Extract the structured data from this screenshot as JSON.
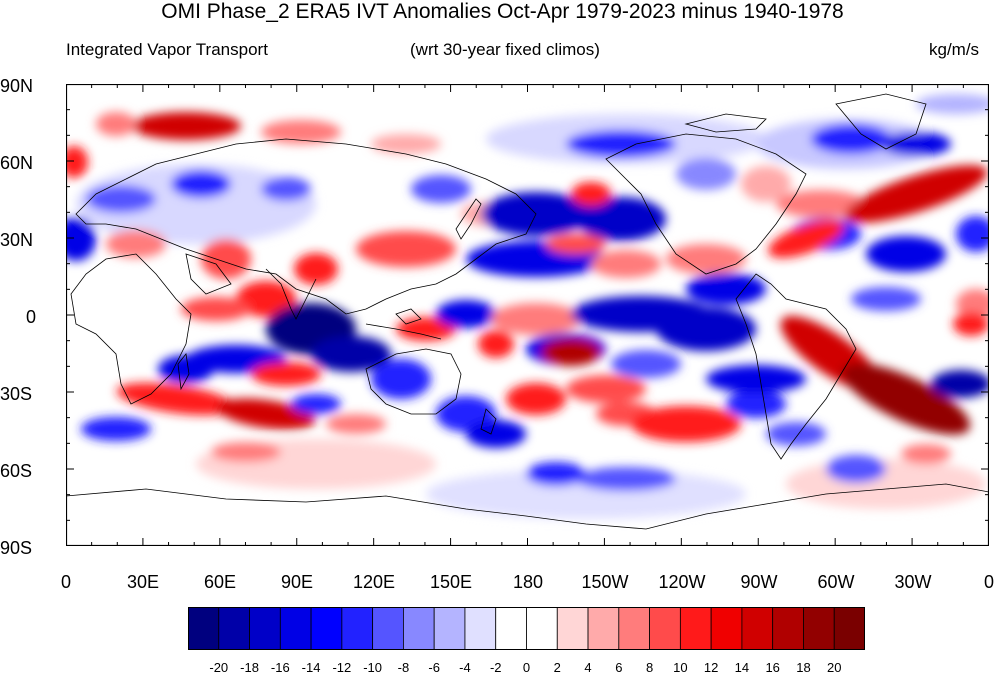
{
  "title": "OMI Phase_2 ERA5 IVT Anomalies Oct-Apr 1979-2023 minus 1940-1978",
  "subtitle_left": "Integrated Vapor Transport",
  "subtitle_center": "(wrt 30-year fixed climos)",
  "subtitle_right": "kg/m/s",
  "lat_labels": [
    "90N",
    "60N",
    "30N",
    "0",
    "30S",
    "60S",
    "90S"
  ],
  "lon_labels": [
    "0",
    "30E",
    "60E",
    "90E",
    "120E",
    "150E",
    "180",
    "150W",
    "120W",
    "90W",
    "60W",
    "30W",
    "0"
  ],
  "colorbar": {
    "levels": [
      "-20",
      "-18",
      "-16",
      "-14",
      "-12",
      "-10",
      "-8",
      "-6",
      "-4",
      "-2",
      "0",
      "2",
      "4",
      "6",
      "8",
      "10",
      "12",
      "14",
      "16",
      "18",
      "20"
    ],
    "colors": [
      "#00007f",
      "#0000a8",
      "#0000c8",
      "#0000e6",
      "#0000ff",
      "#2222ff",
      "#5555ff",
      "#8888ff",
      "#b4b4ff",
      "#e0e0ff",
      "#ffffff",
      "#ffffff",
      "#ffd6d6",
      "#ffaaaa",
      "#ff7c7c",
      "#ff4b4b",
      "#ff1a1a",
      "#f00000",
      "#d00000",
      "#b00000",
      "#920000",
      "#7a0000"
    ]
  },
  "colors": {
    "blue_strong": "#0000c8",
    "blue_mid": "#3333ff",
    "blue_light": "#b4b4ff",
    "red_strong": "#cc0000",
    "red_mid": "#ff4b4b",
    "red_light": "#ffaaaa",
    "coast": "#000000"
  }
}
